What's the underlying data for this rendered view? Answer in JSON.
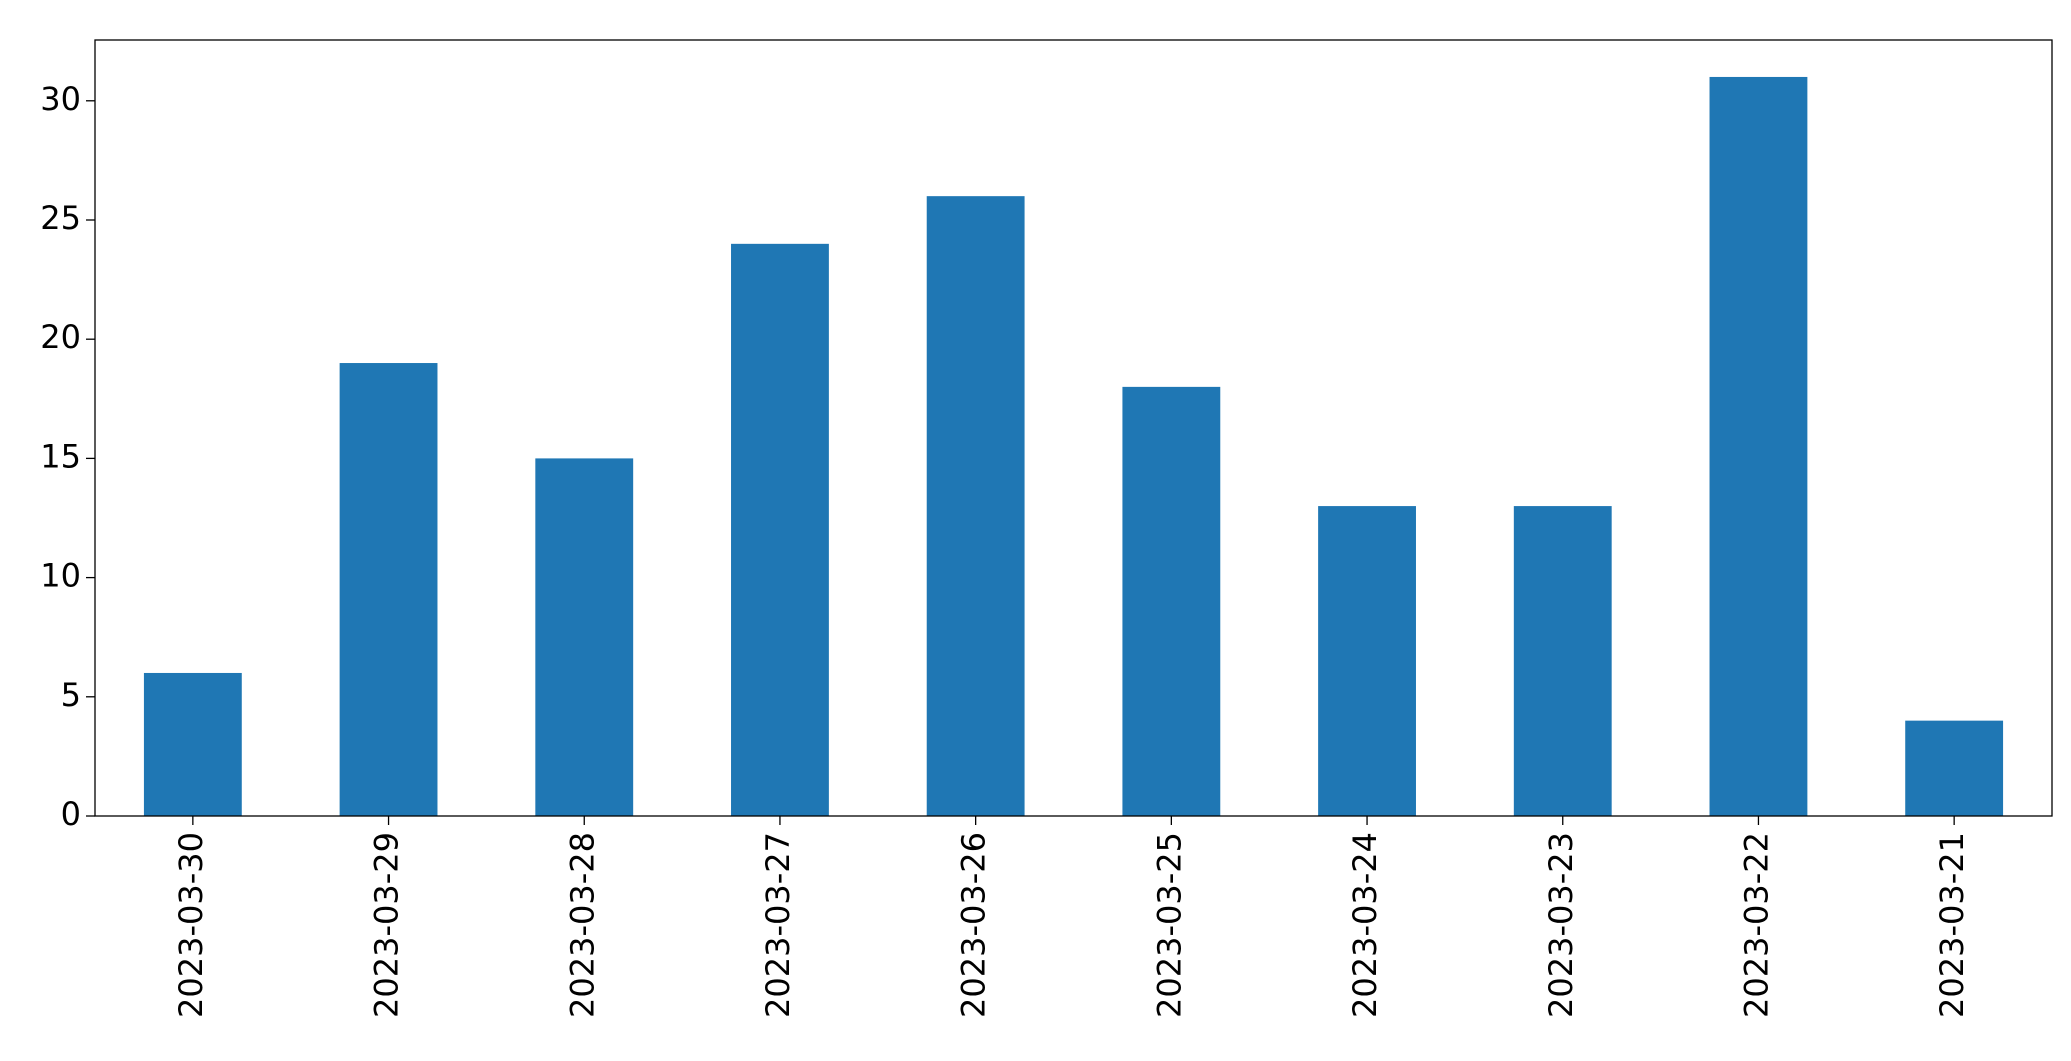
{
  "chart_data": {
    "type": "bar",
    "categories": [
      "2023-03-30",
      "2023-03-29",
      "2023-03-28",
      "2023-03-27",
      "2023-03-26",
      "2023-03-25",
      "2023-03-24",
      "2023-03-23",
      "2023-03-22",
      "2023-03-21"
    ],
    "values": [
      6,
      19,
      15,
      24,
      26,
      18,
      13,
      13,
      31,
      4
    ],
    "color": "#1f77b4",
    "ylim": [
      0,
      32.55
    ],
    "yticks": [
      0,
      5,
      10,
      15,
      20,
      25,
      30
    ],
    "grid": false
  }
}
